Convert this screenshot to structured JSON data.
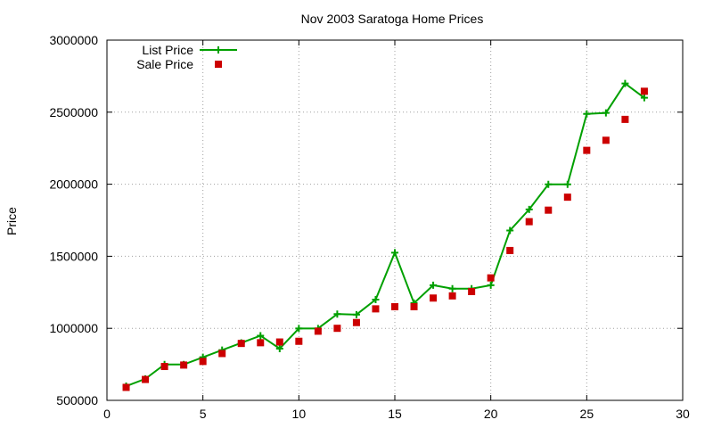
{
  "chart_data": {
    "type": "line",
    "title": "Nov 2003 Saratoga Home Prices",
    "xlabel": "",
    "ylabel": "Price",
    "xlim": [
      0,
      30
    ],
    "ylim": [
      500000,
      3000000
    ],
    "xticks": [
      0,
      5,
      10,
      15,
      20,
      25,
      30
    ],
    "xtick_labels": [
      "0",
      "5",
      "10",
      "15",
      "20",
      "25",
      "30"
    ],
    "yticks": [
      500000,
      1000000,
      1500000,
      2000000,
      2500000,
      3000000
    ],
    "ytick_labels": [
      "500000",
      "1000000",
      "1500000",
      "2000000",
      "2500000",
      "3000000"
    ],
    "grid": true,
    "legend_position": "top-left",
    "series": [
      {
        "name": "List Price",
        "style": "line-with-plus-markers",
        "color": "#00a000",
        "x": [
          1,
          2,
          3,
          4,
          5,
          6,
          7,
          8,
          9,
          10,
          11,
          12,
          13,
          14,
          15,
          16,
          17,
          18,
          19,
          20,
          21,
          22,
          23,
          24,
          25,
          26,
          27,
          28
        ],
        "y": [
          599000,
          649000,
          749000,
          749000,
          799000,
          849000,
          899000,
          949000,
          859000,
          999000,
          999000,
          1099000,
          1095000,
          1199000,
          1525000,
          1175000,
          1299000,
          1275000,
          1275000,
          1299000,
          1679000,
          1825000,
          1999000,
          1999000,
          2488000,
          2495000,
          2699000,
          2600000
        ]
      },
      {
        "name": "Sale Price",
        "style": "square-markers",
        "color": "#cc0000",
        "x": [
          1,
          2,
          3,
          4,
          5,
          6,
          7,
          8,
          9,
          10,
          11,
          12,
          13,
          14,
          15,
          16,
          17,
          18,
          19,
          20,
          21,
          22,
          23,
          24,
          25,
          26,
          27,
          28
        ],
        "y": [
          590000,
          645000,
          735000,
          745000,
          770000,
          825000,
          895000,
          900000,
          905000,
          910000,
          980000,
          1000000,
          1040000,
          1135000,
          1150000,
          1150000,
          1210000,
          1225000,
          1255000,
          1350000,
          1540000,
          1740000,
          1820000,
          1910000,
          2235000,
          2305000,
          2450000,
          2645000
        ]
      }
    ]
  }
}
